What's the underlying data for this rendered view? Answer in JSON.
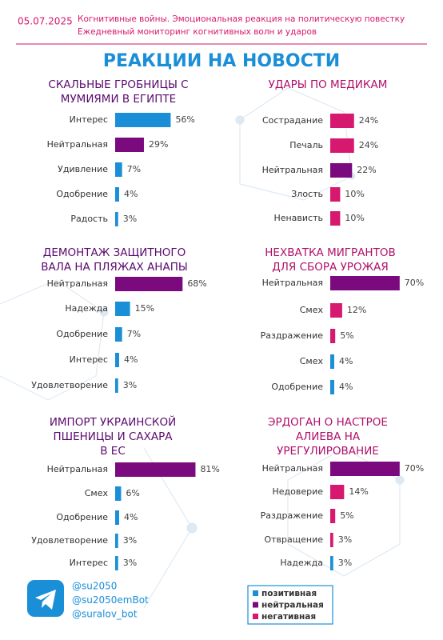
{
  "header": {
    "date": "05.07.2025",
    "subtitle": [
      "Когнитивные войны. Эмоциональная реакция на политическую повестку",
      "Ежедневный мониторинг когнитивных волн и ударов"
    ],
    "title": "РЕАКЦИИ НА НОВОСТИ"
  },
  "chart_data": [
    {
      "type": "bar",
      "title": [
        "СКАЛЬНЫЕ ГРОБНИЦЫ С",
        "МУМИЯМИ В ЕГИПТЕ"
      ],
      "categories": [
        "Интерес",
        "Нейтральная",
        "Удивление",
        "Одобрение",
        "Радость"
      ],
      "values": [
        56,
        29,
        7,
        4,
        3
      ],
      "value_labels": [
        "56%",
        "29%",
        "7%",
        "4%",
        "3%"
      ],
      "colors": [
        "#1a8fd8",
        "#7a0a7e",
        "#1a8fd8",
        "#1a8fd8",
        "#1a8fd8"
      ]
    },
    {
      "type": "bar",
      "title": [
        "УДАРЫ ПО МЕДИКАМ"
      ],
      "categories": [
        "Сострадание",
        "Печаль",
        "Нейтральная",
        "Злость",
        "Ненависть"
      ],
      "values": [
        24,
        24,
        22,
        10,
        10
      ],
      "value_labels": [
        "24%",
        "24%",
        "22%",
        "10%",
        "10%"
      ],
      "colors": [
        "#d6186e",
        "#d6186e",
        "#7a0a7e",
        "#d6186e",
        "#d6186e"
      ]
    },
    {
      "type": "bar",
      "title": [
        "ДЕМОНТАЖ ЗАЩИТНОГО",
        "ВАЛА НА ПЛЯЖАХ АНАПЫ"
      ],
      "categories": [
        "Нейтральная",
        "Надежда",
        "Одобрение",
        "Интерес",
        "Удовлетворение"
      ],
      "values": [
        68,
        15,
        7,
        4,
        3
      ],
      "value_labels": [
        "68%",
        "15%",
        "7%",
        "4%",
        "3%"
      ],
      "colors": [
        "#7a0a7e",
        "#1a8fd8",
        "#1a8fd8",
        "#1a8fd8",
        "#1a8fd8"
      ]
    },
    {
      "type": "bar",
      "title": [
        "НЕХВАТКА МИГРАНТОВ",
        "ДЛЯ СБОРА УРОЖАЯ"
      ],
      "categories": [
        "Нейтральная",
        "Смех",
        "Раздражение",
        "Смех",
        "Одобрение"
      ],
      "values": [
        70,
        12,
        5,
        4,
        4
      ],
      "value_labels": [
        "70%",
        "12%",
        "5%",
        "4%",
        "4%"
      ],
      "colors": [
        "#7a0a7e",
        "#d6186e",
        "#d6186e",
        "#1a8fd8",
        "#1a8fd8"
      ]
    },
    {
      "type": "bar",
      "title": [
        "ИМПОРТ УКРАИНСКОЙ",
        "ПШЕНИЦЫ И САХАРА",
        "В ЕС"
      ],
      "categories": [
        "Нейтральная",
        "Смех",
        "Одобрение",
        "Удовлетворение",
        "Интерес"
      ],
      "values": [
        81,
        6,
        4,
        3,
        3
      ],
      "value_labels": [
        "81%",
        "6%",
        "4%",
        "3%",
        "3%"
      ],
      "colors": [
        "#7a0a7e",
        "#1a8fd8",
        "#1a8fd8",
        "#1a8fd8",
        "#1a8fd8"
      ]
    },
    {
      "type": "bar",
      "title": [
        "ЭРДОГАН О НАСТРОЕ",
        "АЛИЕВА НА",
        "УРЕГУЛИРОВАНИЕ"
      ],
      "categories": [
        "Нейтральная",
        "Недоверие",
        "Раздражение",
        "Отвращение",
        "Надежда"
      ],
      "values": [
        70,
        14,
        5,
        3,
        3
      ],
      "value_labels": [
        "70%",
        "14%",
        "5%",
        "3%",
        "3%"
      ],
      "colors": [
        "#7a0a7e",
        "#d6186e",
        "#d6186e",
        "#d6186e",
        "#1a8fd8"
      ]
    }
  ],
  "legend": [
    {
      "name": "позитивная",
      "color": "#1a8fd8"
    },
    {
      "name": "нейтральная",
      "color": "#7a0a7e"
    },
    {
      "name": "негативная",
      "color": "#d6186e"
    }
  ],
  "footer": {
    "handles": [
      "@su2050",
      "@su2050emBot",
      "@suralov_bot"
    ]
  }
}
